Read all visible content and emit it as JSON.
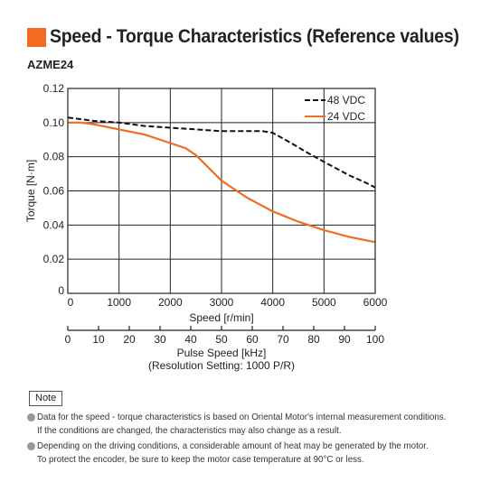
{
  "header": {
    "title": "Speed - Torque Characteristics (Reference values)",
    "accent_color": "#f26b21"
  },
  "model": "AZME24",
  "chart_data": {
    "type": "line",
    "x_label": "Speed [r/min]",
    "y_label": "Torque [N·m]",
    "x_range": [
      0,
      6000
    ],
    "y_range": [
      0,
      0.12
    ],
    "x_ticks": [
      "0",
      "1000",
      "2000",
      "3000",
      "4000",
      "5000",
      "6000"
    ],
    "y_ticks": [
      "0",
      "0.02",
      "0.04",
      "0.06",
      "0.08",
      "0.10",
      "0.12"
    ],
    "grid": true,
    "legend_placement": "top-right",
    "series": [
      {
        "name": "48 VDC",
        "style": "dashed",
        "color": "#111111",
        "points": [
          [
            0,
            0.103
          ],
          [
            500,
            0.101
          ],
          [
            1000,
            0.1
          ],
          [
            1500,
            0.098
          ],
          [
            2000,
            0.097
          ],
          [
            2500,
            0.096
          ],
          [
            3000,
            0.095
          ],
          [
            3500,
            0.095
          ],
          [
            3800,
            0.095
          ],
          [
            4000,
            0.094
          ],
          [
            4300,
            0.089
          ],
          [
            4700,
            0.082
          ],
          [
            5000,
            0.077
          ],
          [
            5500,
            0.069
          ],
          [
            5800,
            0.065
          ],
          [
            6000,
            0.062
          ]
        ]
      },
      {
        "name": "24 VDC",
        "style": "solid",
        "color": "#f26b21",
        "points": [
          [
            0,
            0.1
          ],
          [
            250,
            0.1
          ],
          [
            500,
            0.099
          ],
          [
            1000,
            0.096
          ],
          [
            1500,
            0.093
          ],
          [
            2000,
            0.088
          ],
          [
            2300,
            0.085
          ],
          [
            2500,
            0.081
          ],
          [
            2700,
            0.075
          ],
          [
            3000,
            0.066
          ],
          [
            3500,
            0.056
          ],
          [
            4000,
            0.048
          ],
          [
            4500,
            0.042
          ],
          [
            5000,
            0.037
          ],
          [
            5500,
            0.033
          ],
          [
            6000,
            0.03
          ]
        ]
      }
    ],
    "secondary_axis": {
      "label": "Pulse Speed [kHz]",
      "sublabel": "(Resolution Setting: 1000 P/R)",
      "range": [
        0,
        100
      ],
      "ticks": [
        "0",
        "10",
        "20",
        "30",
        "40",
        "50",
        "60",
        "70",
        "80",
        "90",
        "100"
      ]
    }
  },
  "notes": {
    "label": "Note",
    "items": [
      {
        "lines": [
          "Data for the speed - torque characteristics is based on Oriental Motor's internal measurement conditions.",
          "If the conditions are changed, the characteristics may also change as a result."
        ]
      },
      {
        "lines": [
          "Depending on the driving conditions, a considerable amount of heat may be generated by the motor.",
          "To protect the encoder, be sure to keep the motor case temperature at 90°C or less."
        ]
      }
    ]
  }
}
